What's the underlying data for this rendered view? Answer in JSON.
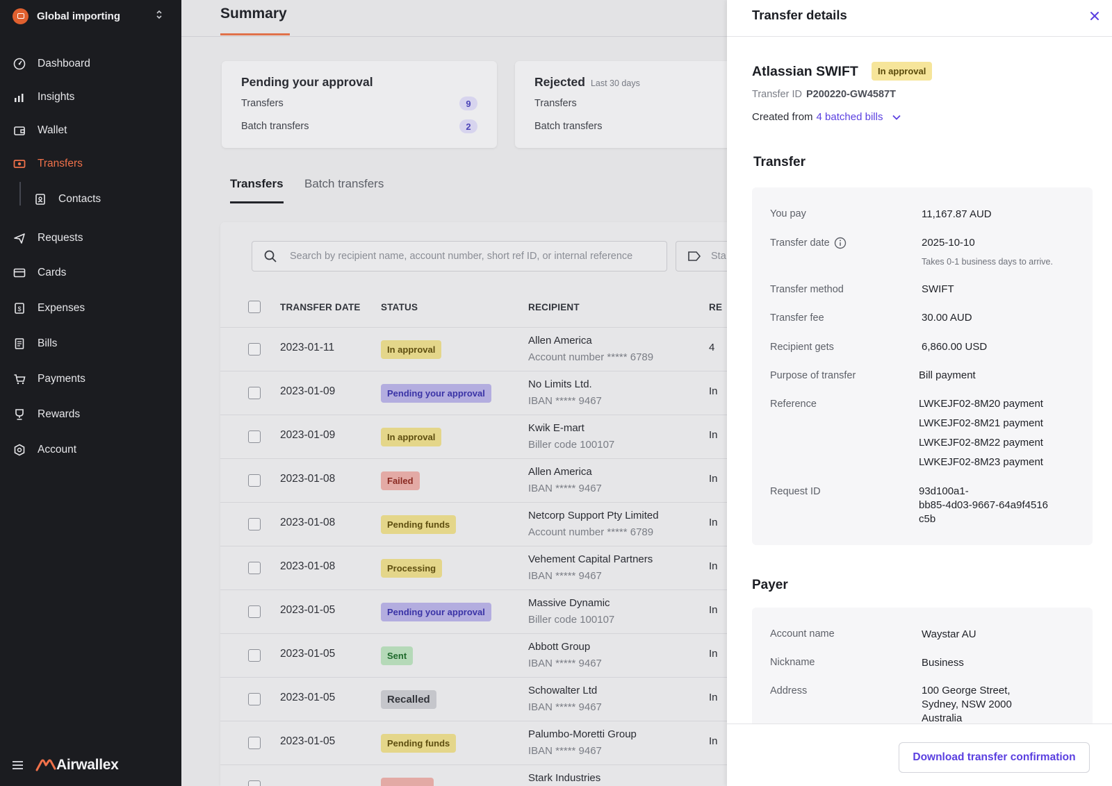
{
  "sidebar": {
    "org_name": "Global importing",
    "items": [
      {
        "label": "Dashboard",
        "icon": "dashboard-icon"
      },
      {
        "label": "Insights",
        "icon": "insights-icon"
      },
      {
        "label": "Wallet",
        "icon": "wallet-icon"
      },
      {
        "label": "Transfers",
        "icon": "transfers-icon",
        "active": true
      },
      {
        "label": "Contacts",
        "icon": "contacts-icon",
        "sub": true
      },
      {
        "label": "Requests",
        "icon": "requests-icon"
      },
      {
        "label": "Cards",
        "icon": "cards-icon"
      },
      {
        "label": "Expenses",
        "icon": "expenses-icon"
      },
      {
        "label": "Bills",
        "icon": "bills-icon"
      },
      {
        "label": "Payments",
        "icon": "payments-icon"
      },
      {
        "label": "Rewards",
        "icon": "rewards-icon"
      },
      {
        "label": "Account",
        "icon": "account-icon"
      }
    ],
    "brand": "Airwallex",
    "active_color": "#f0714a"
  },
  "main": {
    "title": "Summary",
    "pending_card": {
      "title": "Pending your approval",
      "rows": [
        {
          "label": "Transfers",
          "count": "9"
        },
        {
          "label": "Batch transfers",
          "count": "2"
        }
      ]
    },
    "rejected_card": {
      "title": "Rejected",
      "subtitle": "Last 30 days",
      "rows": [
        {
          "label": "Transfers"
        },
        {
          "label": "Batch transfers"
        }
      ]
    },
    "tabs": [
      {
        "label": "Transfers",
        "active": true
      },
      {
        "label": "Batch transfers",
        "active": false
      }
    ],
    "search_placeholder": "Search by recipient name, account number, short ref ID, or internal reference",
    "status_filter_label": "Sta",
    "columns": [
      "TRANSFER DATE",
      "STATUS",
      "RECIPIENT",
      "RE"
    ],
    "rows": [
      {
        "date": "2023-01-11",
        "status": "In approval",
        "status_type": "approval",
        "recipient": "Allen America",
        "account": "Account number ***** 6789",
        "ref": "4"
      },
      {
        "date": "2023-01-09",
        "status": "Pending your approval",
        "status_type": "pending",
        "recipient": "No Limits Ltd.",
        "account": "IBAN ***** 9467",
        "ref": "In"
      },
      {
        "date": "2023-01-09",
        "status": "In approval",
        "status_type": "approval",
        "recipient": "Kwik E-mart",
        "account": "Biller code 100107",
        "ref": "In"
      },
      {
        "date": "2023-01-08",
        "status": "Failed",
        "status_type": "failed",
        "recipient": "Allen America",
        "account": "IBAN ***** 9467",
        "ref": "In"
      },
      {
        "date": "2023-01-08",
        "status": "Pending funds",
        "status_type": "funds",
        "recipient": "Netcorp Support Pty Limited",
        "account": "Account number ***** 6789",
        "ref": "In"
      },
      {
        "date": "2023-01-08",
        "status": "Processing",
        "status_type": "processing",
        "recipient": "Vehement Capital Partners",
        "account": "IBAN ***** 9467",
        "ref": "In"
      },
      {
        "date": "2023-01-05",
        "status": "Pending your approval",
        "status_type": "pending",
        "recipient": "Massive Dynamic",
        "account": "Biller code 100107",
        "ref": "In"
      },
      {
        "date": "2023-01-05",
        "status": "Sent",
        "status_type": "sent",
        "recipient": "Abbott Group",
        "account": "IBAN ***** 9467",
        "ref": "In"
      },
      {
        "date": "2023-01-05",
        "status": "Recalled",
        "status_type": "recalled",
        "recipient": "Schowalter Ltd",
        "account": "IBAN ***** 9467",
        "ref": "In"
      },
      {
        "date": "2023-01-05",
        "status": "Pending funds",
        "status_type": "funds",
        "recipient": "Palumbo-Moretti Group",
        "account": "IBAN ***** 9467",
        "ref": "In"
      },
      {
        "date": "",
        "status": "",
        "status_type": "failed",
        "recipient": "Stark Industries",
        "account": "",
        "ref": ""
      }
    ]
  },
  "panel": {
    "title": "Transfer details",
    "name": "Atlassian SWIFT",
    "status": "In approval",
    "transfer_id_label": "Transfer ID",
    "transfer_id": "P200220-GW4587T",
    "created_from_label": "Created from",
    "created_from_link": "4 batched bills",
    "transfer_section": "Transfer",
    "transfer_fields": {
      "you_pay_label": "You pay",
      "you_pay": "11,167.87 AUD",
      "date_label": "Transfer date",
      "date": "2025-10-10",
      "date_note": "Takes 0-1 business days to arrive.",
      "method_label": "Transfer method",
      "method": "SWIFT",
      "fee_label": "Transfer fee",
      "fee": "30.00 AUD",
      "gets_label": "Recipient gets",
      "gets": "6,860.00 USD",
      "purpose_label": "Purpose of transfer",
      "purpose": "Bill payment",
      "reference_label": "Reference",
      "references": [
        "LWKEJF02-8M20 payment",
        "LWKEJF02-8M21 payment",
        "LWKEJF02-8M22 payment",
        "LWKEJF02-8M23 payment"
      ],
      "request_id_label": "Request ID",
      "request_id_lines": [
        "93d100a1-",
        "bb85-4d03-9667-64a9f4516",
        "c5b"
      ]
    },
    "payer_section": "Payer",
    "payer_fields": {
      "account_name_label": "Account name",
      "account_name": "Waystar AU",
      "nickname_label": "Nickname",
      "nickname": "Business",
      "address_label": "Address",
      "address_lines": [
        "100 George Street,",
        "Sydney, NSW 2000",
        "Australia"
      ]
    },
    "download_label": "Download transfer confirmation",
    "link_color": "#5a3fe0"
  }
}
